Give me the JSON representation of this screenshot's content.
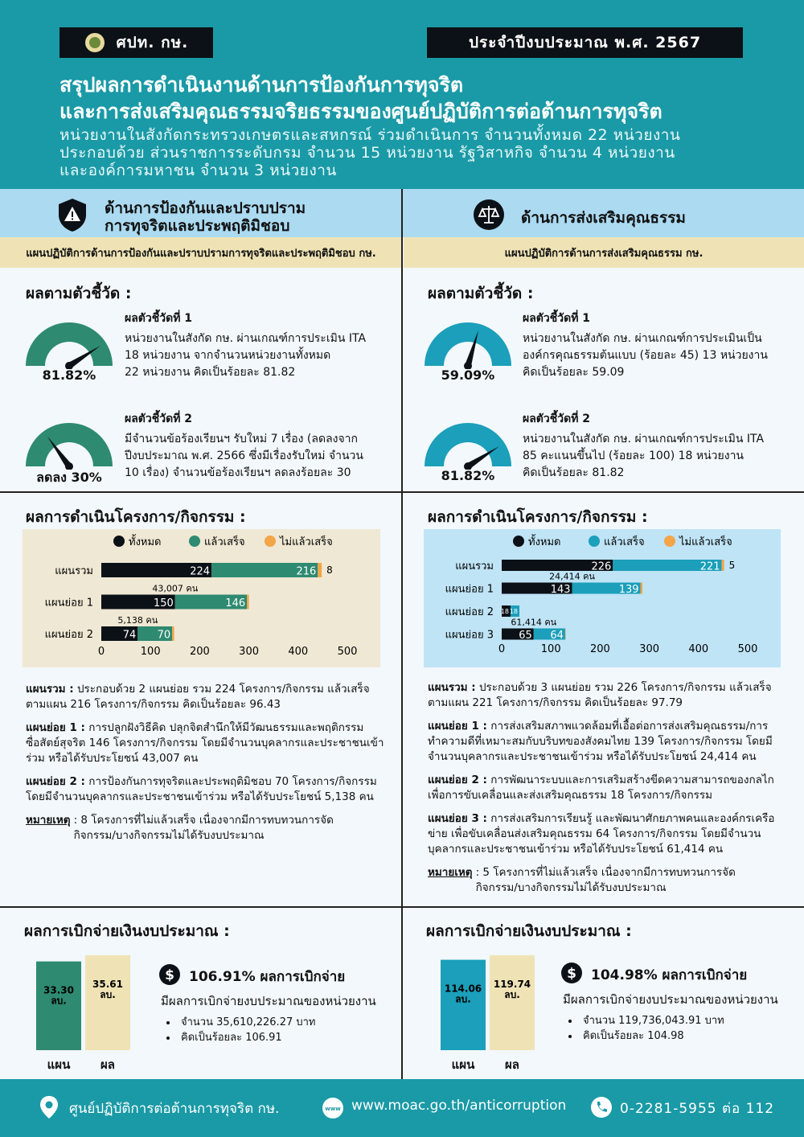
{
  "header": {
    "org": "ศปท. กษ.",
    "fiscal_year": "ประจำปีงบประมาณ  พ.ศ. 2567",
    "title_lines": [
      "สรุปผลการดำเนินงานด้านการป้องกันการทุจริต",
      "และการส่งเสริมคุณธรรมจริยธรรมของศูนย์ปฏิบัติการต่อต้านการทุจริต"
    ],
    "desc_lines": [
      "หน่วยงานในสังกัดกระทรวงเกษตรและสหกรณ์ ร่วมดำเนินการ จำนวนทั้งหมด 22 หน่วยงาน",
      "ประกอบด้วย ส่วนราชการระดับกรม จำนวน 15 หน่วยงาน รัฐวิสาหกิจ จำนวน 4 หน่วยงาน",
      "และองค์การมหาชน จำนวน 3 หน่วยงาน"
    ]
  },
  "left": {
    "heading_lines": [
      "ด้านการป้องกันและปราบปราม",
      "การทุจริตและประพฤติมิชอบ"
    ],
    "plan": "แผนปฏิบัติการด้านการป้องกันและปราบปรามการทุจริตและประพฤติมิชอบ กษ.",
    "indicators_title": "ผลตามตัวชี้วัด :",
    "indicators": [
      {
        "label": "ผลตัวชี้วัดที่ 1",
        "lines": [
          "หน่วยงานในสังกัด กษ. ผ่านเกณฑ์การประเมิน ITA",
          "18 หน่วยงาน จากจำนวนหน่วยงานทั้งหมด",
          "22 หน่วยงาน คิดเป็นร้อยละ 81.82"
        ],
        "gauge_value": 81.82,
        "gauge_label": "81.82%"
      },
      {
        "label": "ผลตัวชี้วัดที่ 2",
        "lines": [
          "มีจำนวนข้อร้องเรียนฯ รับใหม่ 7 เรื่อง (ลดลงจาก",
          "ปีงบประมาณ พ.ศ. 2566 ซึ่งมีเรื่องรับใหม่ จำนวน",
          "10 เรื่อง) จำนวนข้อร้องเรียนฯ ลดลงร้อยละ 30"
        ],
        "gauge_value": 30,
        "gauge_label": "ลดลง 30%"
      }
    ],
    "projects_title": "ผลการดำเนินโครงการ/กิจกรรม :",
    "chart": {
      "legend": [
        "ทั้งหมด",
        "แล้วเสร็จ",
        "ไม่แล้วเสร็จ"
      ],
      "colors": [
        "#0b1116",
        "#2e8a70",
        "#f3a548"
      ],
      "categories": [
        "แผนรวม",
        "แผนย่อย 1",
        "แผนย่อย 2"
      ],
      "totals": [
        224,
        150,
        74
      ],
      "done": [
        216,
        146,
        70
      ],
      "not_done": [
        8,
        4,
        4
      ],
      "not_done_labels": [
        "8",
        null,
        null
      ],
      "participant_labels": [
        null,
        "43,007 คน",
        "5,138 คน"
      ],
      "xlim": [
        0,
        500
      ],
      "xticks": [
        0,
        100,
        200,
        300,
        400,
        500
      ]
    },
    "notes": [
      {
        "lead": "แผนรวม :",
        "text": "ประกอบด้วย 2 แผนย่อย รวม 224 โครงการ/กิจกรรม แล้วเสร็จตามแผน 216 โครงการ/กิจกรรม คิดเป็นร้อยละ 96.43"
      },
      {
        "lead": "แผนย่อย 1 :",
        "text": "การปลูกฝังวิธีคิด ปลุกจิตสำนึกให้มีวัฒนธรรมและพฤติกรรมซื่อสัตย์สุจริต 146 โครงการ/กิจกรรม โดยมีจำนวนบุคลากรและประชาชนเข้าร่วม หรือได้รับประโยชน์ 43,007 คน"
      },
      {
        "lead": "แผนย่อย 2 :",
        "text": "การป้องกันการทุจริตและประพฤติมิชอบ 70 โครงการ/กิจกรรม โดยมีจำนวนบุคลากรและประชาชนเข้าร่วม หรือได้รับประโยชน์ 5,138 คน"
      }
    ],
    "remark": {
      "lead": "หมายเหตุ",
      "text": ": 8 โครงการที่ไม่แล้วเสร็จ เนื่องจากมีการทบทวนการจัดกิจกรรม/บางกิจกรรมไม่ได้รับงบประมาณ"
    },
    "budget": {
      "title": "ผลการเบิกจ่ายเงินงบประมาณ :",
      "categories": [
        "แผน",
        "ผล"
      ],
      "values": [
        33.3,
        35.61
      ],
      "value_labels": [
        "33.30 ลบ.",
        "35.61 ลบ."
      ],
      "colors": [
        "#2e8a70",
        "#efe3b5"
      ],
      "headline": "106.91% ผลการเบิกจ่าย",
      "desc": "มีผลการเบิกจ่ายงบประมาณของหน่วยงาน",
      "bullets": [
        "จำนวน 35,610,226.27 บาท",
        "คิดเป็นร้อยละ 106.91"
      ]
    }
  },
  "right": {
    "heading_lines": [
      "ด้านการส่งเสริมคุณธรรม"
    ],
    "plan": "แผนปฏิบัติการด้านการส่งเสริมคุณธรรม กษ.",
    "indicators_title": "ผลตามตัวชี้วัด :",
    "indicators": [
      {
        "label": "ผลตัวชี้วัดที่ 1",
        "lines": [
          "หน่วยงานในสังกัด กษ. ผ่านเกณฑ์การประเมินเป็น",
          "องค์กรคุณธรรมต้นแบบ (ร้อยละ 45) 13 หน่วยงาน",
          "คิดเป็นร้อยละ 59.09"
        ],
        "gauge_value": 59.09,
        "gauge_label": "59.09%"
      },
      {
        "label": "ผลตัวชี้วัดที่ 2",
        "lines": [
          "หน่วยงานในสังกัด กษ. ผ่านเกณฑ์การประเมิน ITA",
          "85 คะแนนขึ้นไป (ร้อยละ 100) 18 หน่วยงาน",
          "คิดเป็นร้อยละ 81.82"
        ],
        "gauge_value": 81.82,
        "gauge_label": "81.82%"
      }
    ],
    "projects_title": "ผลการดำเนินโครงการ/กิจกรรม :",
    "chart": {
      "legend": [
        "ทั้งหมด",
        "แล้วเสร็จ",
        "ไม่แล้วเสร็จ"
      ],
      "colors": [
        "#0b1116",
        "#1b9fba",
        "#f3a548"
      ],
      "categories": [
        "แผนรวม",
        "แผนย่อย 1",
        "แผนย่อย 2",
        "แผนย่อย 3"
      ],
      "totals": [
        226,
        143,
        18,
        65
      ],
      "done": [
        221,
        139,
        18,
        64
      ],
      "not_done": [
        5,
        4,
        0,
        1
      ],
      "not_done_labels": [
        "5",
        null,
        null,
        null
      ],
      "participant_labels": [
        null,
        "24,414 คน",
        null,
        "61,414 คน"
      ],
      "xlim": [
        0,
        500
      ],
      "xticks": [
        0,
        100,
        200,
        300,
        400,
        500
      ]
    },
    "notes": [
      {
        "lead": "แผนรวม :",
        "text": "ประกอบด้วย 3 แผนย่อย รวม 226 โครงการ/กิจกรรม แล้วเสร็จตามแผน 221 โครงการ/กิจกรรม คิดเป็นร้อยละ 97.79"
      },
      {
        "lead": "แผนย่อย 1 :",
        "text": "การส่งเสริมสภาพแวดล้อมที่เอื้อต่อการส่งเสริมคุณธรรม/การทำความดีที่เหมาะสมกับบริบทของสังคมไทย 139 โครงการ/กิจกรรม โดยมีจำนวนบุคลากรและประชาชนเข้าร่วม หรือได้รับประโยชน์ 24,414 คน"
      },
      {
        "lead": "แผนย่อย 2 :",
        "text": "การพัฒนาระบบและการเสริมสร้างขีดความสามารถของกลไกเพื่อการขับเคลื่อนและส่งเสริมคุณธรรม 18 โครงการ/กิจกรรม"
      },
      {
        "lead": "แผนย่อย 3 :",
        "text": "การส่งเสริมการเรียนรู้ และพัฒนาศักยภาพคนและองค์กรเครือข่าย เพื่อขับเคลื่อนส่งเสริมคุณธรรม 64 โครงการ/กิจกรรม โดยมีจำนวนบุคลากรและประชาชนเข้าร่วม หรือได้รับประโยชน์ 61,414 คน"
      }
    ],
    "remark": {
      "lead": "หมายเหตุ",
      "text": ": 5 โครงการที่ไม่แล้วเสร็จ เนื่องจากมีการทบทวนการจัดกิจกรรม/บางกิจกรรมไม่ได้รับงบประมาณ"
    },
    "budget": {
      "title": "ผลการเบิกจ่ายเงินงบประมาณ :",
      "categories": [
        "แผน",
        "ผล"
      ],
      "values": [
        114.06,
        119.74
      ],
      "value_labels": [
        "114.06 ลบ.",
        "119.74 ลบ."
      ],
      "colors": [
        "#1b9fba",
        "#efe3b5"
      ],
      "headline": "104.98% ผลการเบิกจ่าย",
      "desc": "มีผลการเบิกจ่ายงบประมาณของหน่วยงาน",
      "bullets": [
        "จำนวน 119,736,043.91  บาท",
        "คิดเป็นร้อยละ 104.98"
      ]
    }
  },
  "footer": {
    "address": "ศูนย์ปฏิบัติการต่อต้านการทุจริต  กษ.",
    "website": "www.moac.go.th/anticorruption",
    "phone": "0-2281-5955 ต่อ 112"
  }
}
